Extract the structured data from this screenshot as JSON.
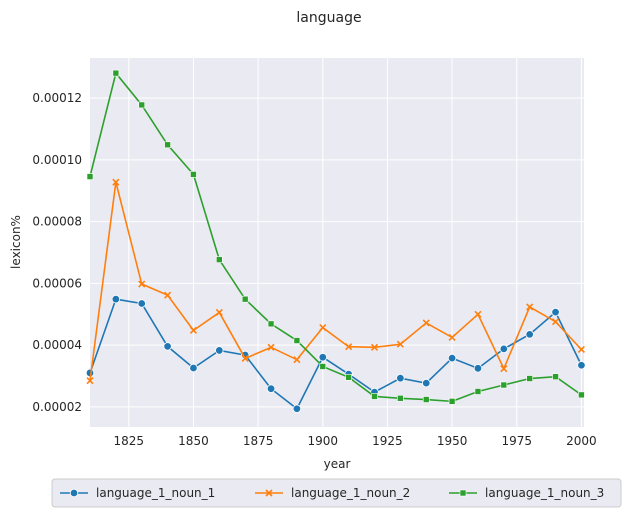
{
  "chart_data": {
    "type": "line",
    "title": "language",
    "xlabel": "year",
    "ylabel": "lexicon%",
    "xlim": [
      1810,
      2001
    ],
    "ylim": [
      1.35e-05,
      0.000133
    ],
    "xticks": [
      1825,
      1850,
      1875,
      1900,
      1925,
      1950,
      1975,
      2000
    ],
    "yticks": [
      2e-05,
      4e-05,
      6e-05,
      8e-05,
      0.0001,
      0.00012
    ],
    "ytick_labels": [
      "0.00002",
      "0.00004",
      "0.00006",
      "0.00008",
      "0.00010",
      "0.00012"
    ],
    "grid": true,
    "legend_position": "bottom",
    "x": [
      1810,
      1820,
      1830,
      1840,
      1850,
      1860,
      1870,
      1880,
      1890,
      1900,
      1910,
      1920,
      1930,
      1940,
      1950,
      1960,
      1970,
      1980,
      1990,
      2000
    ],
    "series": [
      {
        "name": "language_1_noun_1",
        "color": "#1f77b4",
        "marker": "circle",
        "values": [
          3.1e-05,
          5.49e-05,
          5.35e-05,
          3.96e-05,
          3.26e-05,
          3.83e-05,
          3.68e-05,
          2.59e-05,
          1.94e-05,
          3.61e-05,
          3.06e-05,
          2.48e-05,
          2.93e-05,
          2.77e-05,
          3.58e-05,
          3.25e-05,
          3.88e-05,
          4.35e-05,
          5.07e-05,
          3.35e-05
        ]
      },
      {
        "name": "language_1_noun_2",
        "color": "#ff7f0e",
        "marker": "x",
        "values": [
          2.85e-05,
          9.28e-05,
          5.98e-05,
          5.62e-05,
          4.48e-05,
          5.06e-05,
          3.57e-05,
          3.93e-05,
          3.53e-05,
          4.57e-05,
          3.95e-05,
          3.93e-05,
          4.03e-05,
          4.72e-05,
          4.25e-05,
          5e-05,
          3.24e-05,
          5.24e-05,
          4.76e-05,
          3.86e-05
        ]
      },
      {
        "name": "language_1_noun_3",
        "color": "#2ca02c",
        "marker": "square",
        "values": [
          9.46e-05,
          0.0001281,
          0.0001178,
          0.0001049,
          9.53e-05,
          6.77e-05,
          5.49e-05,
          4.69e-05,
          4.15e-05,
          3.31e-05,
          2.96e-05,
          2.34e-05,
          2.28e-05,
          2.24e-05,
          2.18e-05,
          2.5e-05,
          2.71e-05,
          2.92e-05,
          2.98e-05,
          2.39e-05
        ]
      }
    ]
  }
}
